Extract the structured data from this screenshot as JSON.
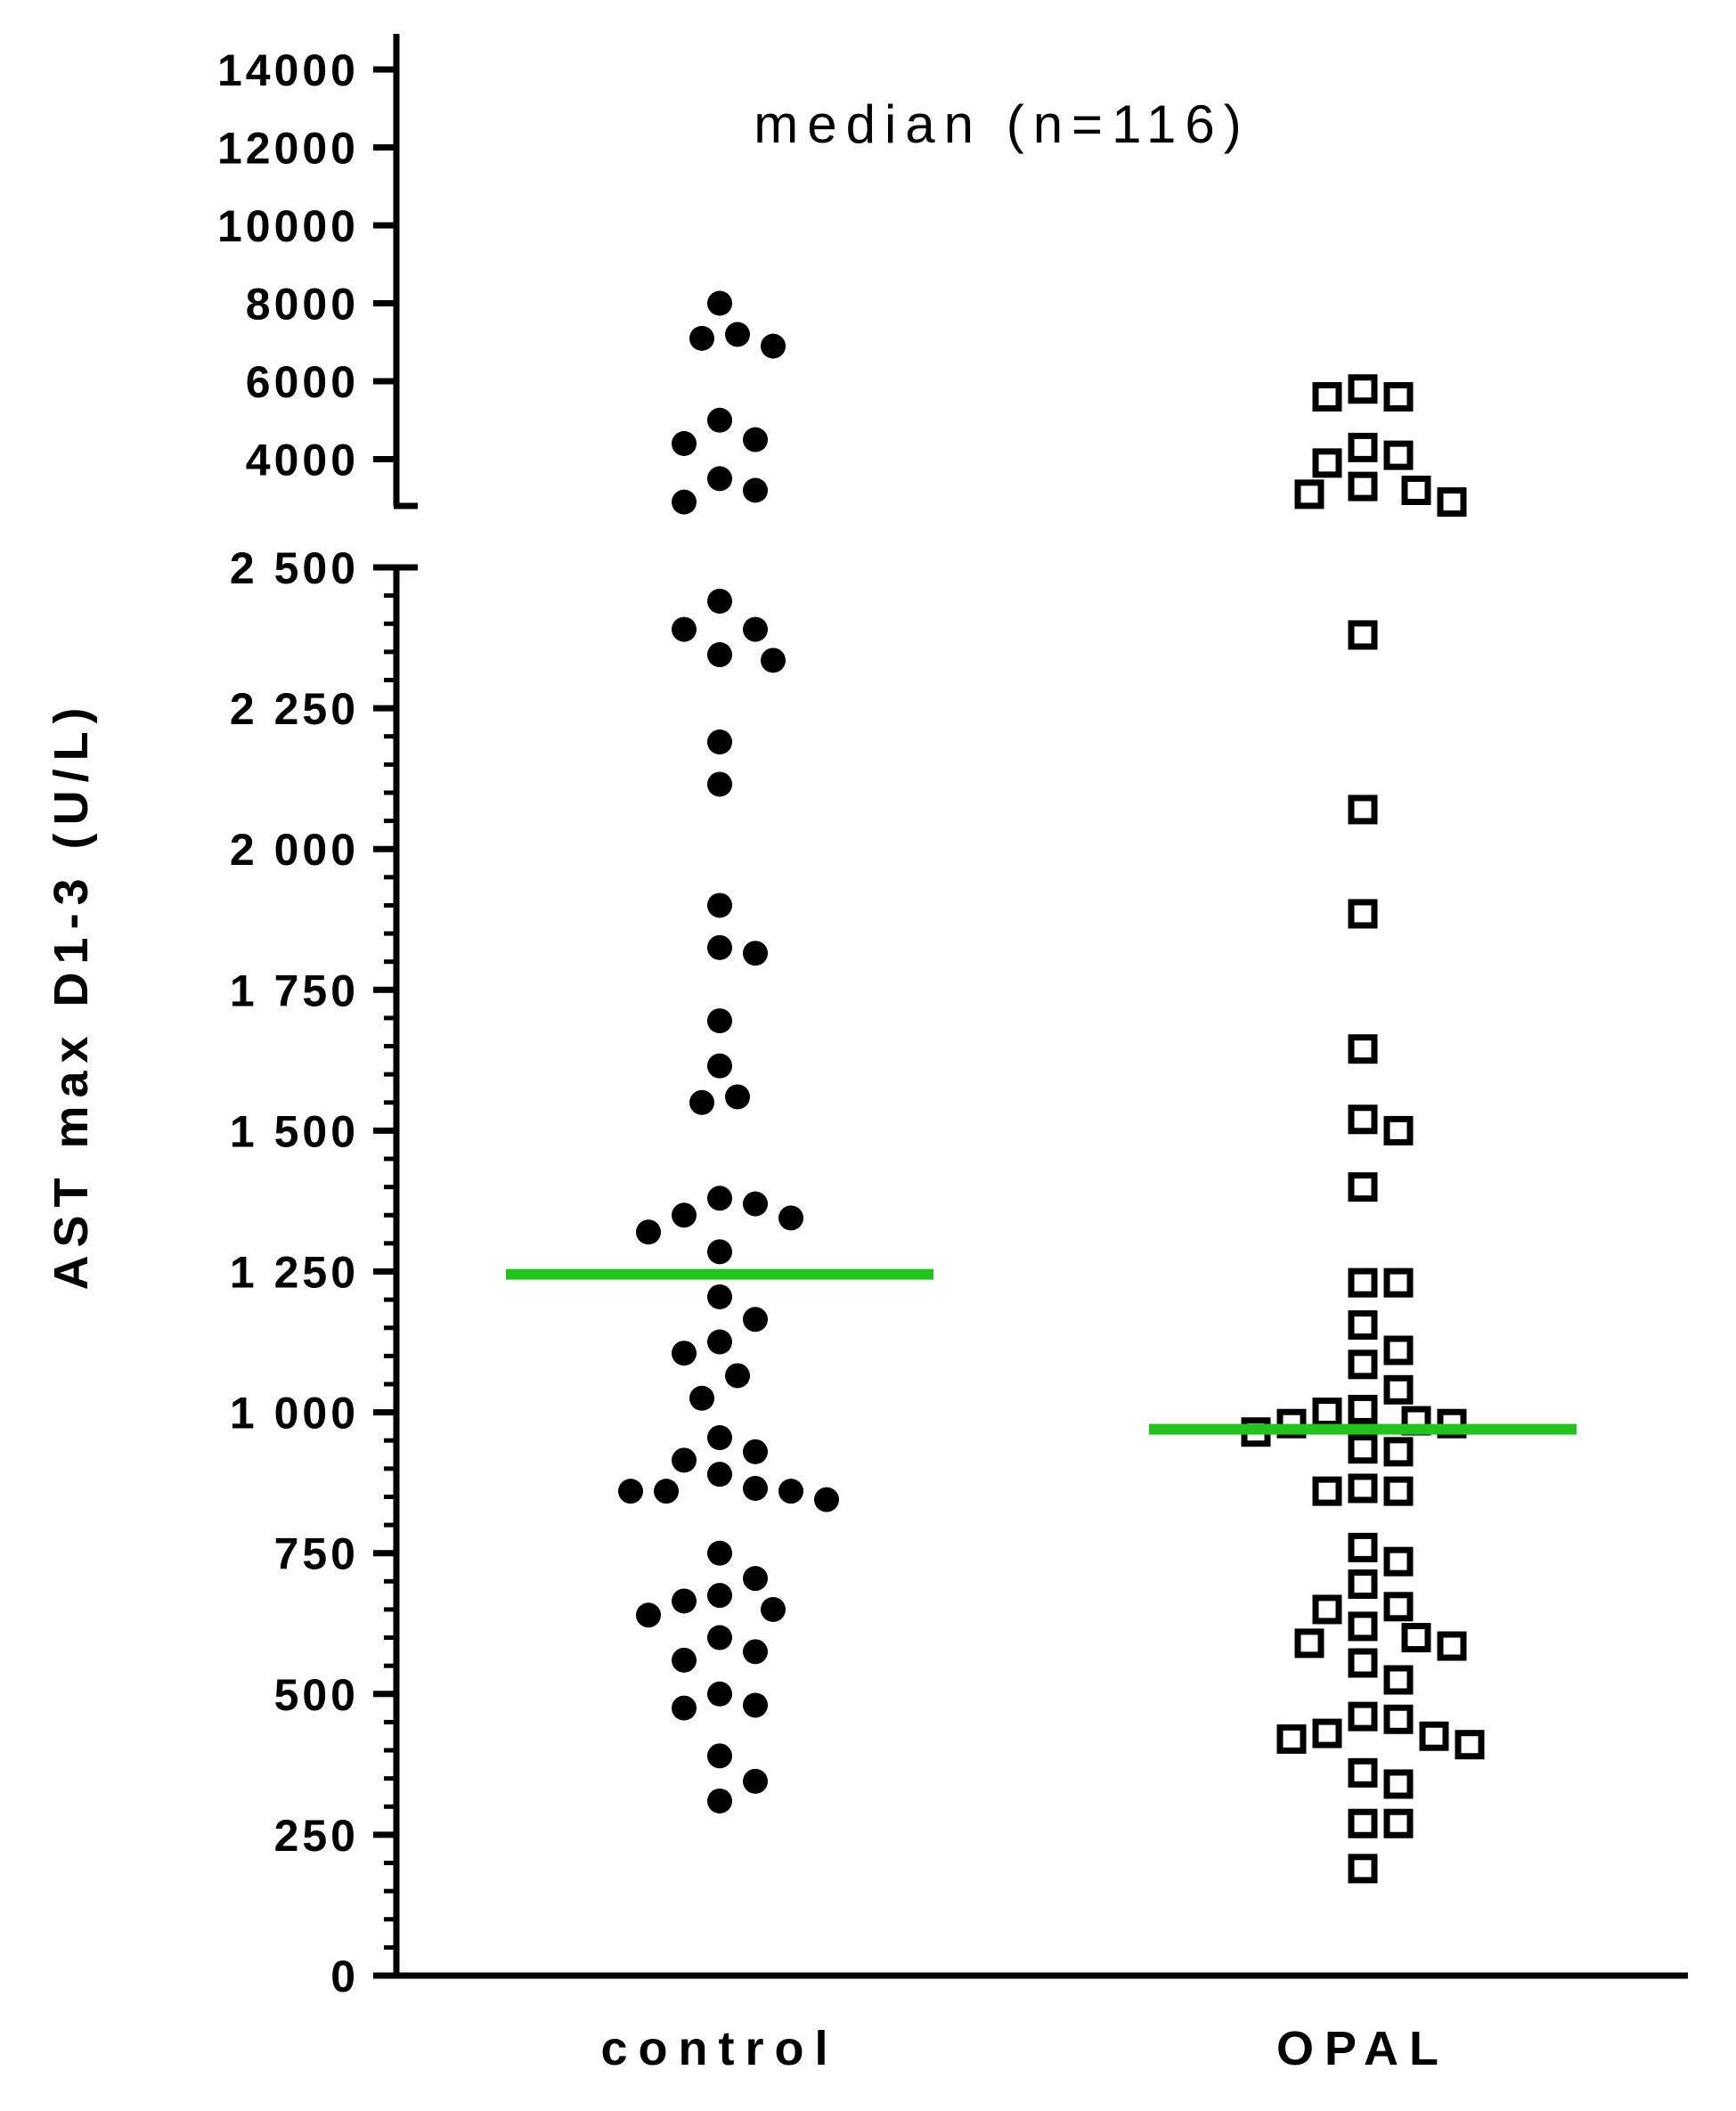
{
  "chart_data": {
    "type": "scatter",
    "title": "median (n=116)",
    "ylabel": "AST max D1-3 (U/L)",
    "xlabel": "",
    "categories": [
      "control",
      "OPAL"
    ],
    "y_axis": {
      "broken": true,
      "lower_segment": {
        "range": [
          0,
          2500
        ],
        "ticks": [
          0,
          250,
          500,
          750,
          1000,
          1250,
          1500,
          1750,
          2000,
          2250,
          2500
        ],
        "tick_labels": [
          "0",
          "250",
          "500",
          "750",
          "1 000",
          "1 250",
          "1 500",
          "1 750",
          "2 000",
          "2 250",
          "2 500"
        ]
      },
      "upper_segment": {
        "range": [
          2800,
          14000
        ],
        "ticks": [
          4000,
          6000,
          8000,
          10000,
          12000,
          14000
        ],
        "tick_labels": [
          "4000",
          "6000",
          "8000",
          "10000",
          "12000",
          "14000"
        ]
      }
    },
    "series": [
      {
        "category": "control",
        "marker": "filled-circle",
        "color": "#000000",
        "median": 1245,
        "values": [
          8000,
          7200,
          7100,
          6900,
          5000,
          4500,
          4400,
          3500,
          3200,
          2900,
          2440,
          2390,
          2390,
          2345,
          2335,
          2190,
          2115,
          1900,
          1825,
          1815,
          1695,
          1615,
          1560,
          1550,
          1380,
          1370,
          1350,
          1345,
          1320,
          1285,
          1205,
          1165,
          1125,
          1105,
          1065,
          1025,
          955,
          930,
          915,
          890,
          865,
          860,
          860,
          860,
          845,
          750,
          705,
          675,
          665,
          650,
          640,
          600,
          575,
          560,
          500,
          480,
          475,
          390,
          345,
          310
        ]
      },
      {
        "category": "OPAL",
        "marker": "open-square",
        "color": "#000000",
        "median": 970,
        "values": [
          5800,
          5600,
          5600,
          4300,
          4100,
          3900,
          3300,
          3200,
          3100,
          2900,
          2380,
          2070,
          1885,
          1645,
          1520,
          1500,
          1400,
          1230,
          1230,
          1155,
          1110,
          1085,
          1040,
          1005,
          1000,
          985,
          980,
          980,
          965,
          935,
          930,
          865,
          860,
          860,
          760,
          735,
          695,
          655,
          650,
          620,
          600,
          590,
          585,
          555,
          525,
          460,
          455,
          430,
          425,
          420,
          410,
          340,
          360,
          270,
          270,
          190
        ]
      }
    ],
    "median_color": "#22c31a",
    "grid": false,
    "legend": "none"
  }
}
